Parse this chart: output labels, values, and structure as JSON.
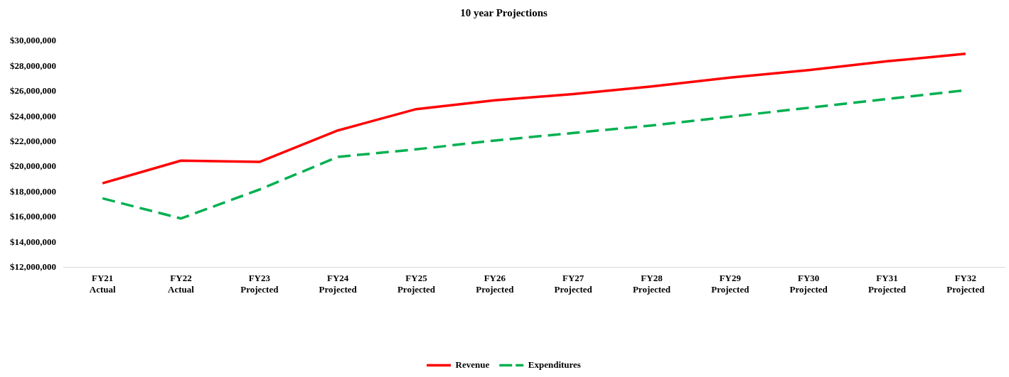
{
  "chart_data": {
    "type": "line",
    "title": "10 year Projections",
    "categories": [
      "FY21\nActual",
      "FY22\nActual",
      "FY23\nProjected",
      "FY24\nProjected",
      "FY25\nProjected",
      "FY26\nProjected",
      "FY27\nProjected",
      "FY28\nProjected",
      "FY29\nProjected",
      "FY30\nProjected",
      "FY31\nProjected",
      "FY32\nProjected"
    ],
    "series": [
      {
        "name": "Revenue",
        "color": "#ff0000",
        "line_style": "solid",
        "values": [
          18700000,
          20500000,
          20400000,
          22900000,
          24600000,
          25300000,
          25800000,
          26400000,
          27100000,
          27700000,
          28400000,
          29000000
        ]
      },
      {
        "name": "Expenditures",
        "color": "#00b050",
        "line_style": "dashed",
        "values": [
          17500000,
          15900000,
          18200000,
          20800000,
          21400000,
          22100000,
          22700000,
          23300000,
          24000000,
          24700000,
          25400000,
          26100000
        ]
      }
    ],
    "ylim": [
      12000000,
      30000000
    ],
    "yticks": [
      {
        "value": 12000000,
        "label": "$12,000,000"
      },
      {
        "value": 14000000,
        "label": "$14,000,000"
      },
      {
        "value": 16000000,
        "label": "$16,000,000"
      },
      {
        "value": 18000000,
        "label": "$18,000,000"
      },
      {
        "value": 20000000,
        "label": "$20,000,000"
      },
      {
        "value": 22000000,
        "label": "$22,000,000"
      },
      {
        "value": 24000000,
        "label": "$24,000,000"
      },
      {
        "value": 26000000,
        "label": "$26,000,000"
      },
      {
        "value": 28000000,
        "label": "$28,000,000"
      },
      {
        "value": 30000000,
        "label": "$30,000,000"
      }
    ],
    "grid": false,
    "legend": "bottom",
    "marker": "none"
  }
}
